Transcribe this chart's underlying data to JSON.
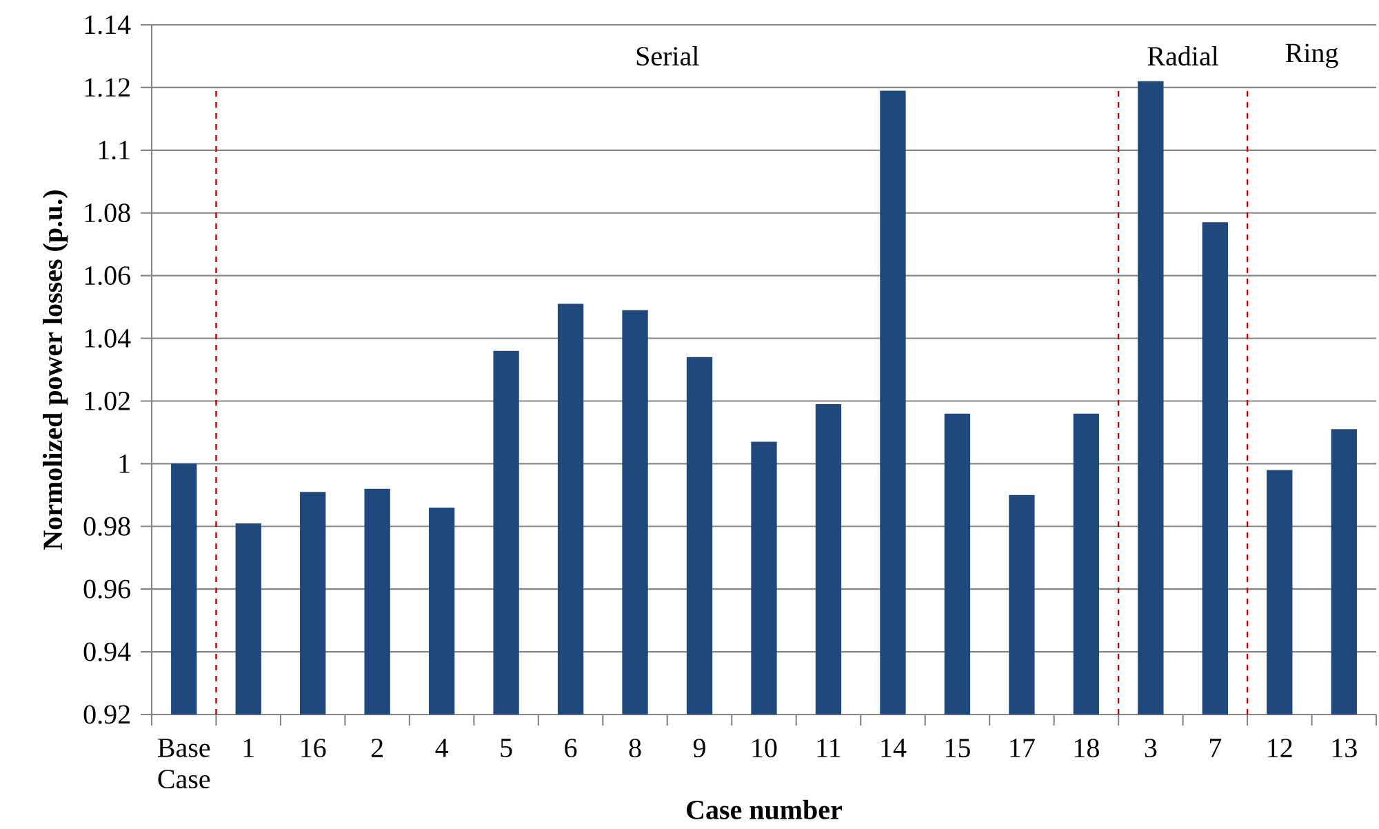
{
  "chart_data": {
    "type": "bar",
    "xlabel": "Case number",
    "ylabel": "Normolized power losses (p.u.)",
    "categories": [
      "Base Case",
      "1",
      "16",
      "2",
      "4",
      "5",
      "6",
      "8",
      "9",
      "10",
      "11",
      "14",
      "15",
      "17",
      "18",
      "3",
      "7",
      "12",
      "13"
    ],
    "values": [
      1.0,
      0.981,
      0.991,
      0.992,
      0.986,
      1.036,
      1.051,
      1.049,
      1.034,
      1.007,
      1.019,
      1.119,
      1.016,
      0.99,
      1.016,
      1.122,
      1.077,
      0.998,
      1.011
    ],
    "color": "#1f497d",
    "ylim": [
      0.92,
      1.14
    ],
    "yticks": [
      0.92,
      0.94,
      0.96,
      0.98,
      1,
      1.02,
      1.04,
      1.06,
      1.08,
      1.1,
      1.12,
      1.14
    ],
    "grid": "y",
    "annotations": [
      "Serial",
      "Radial",
      "Ring"
    ]
  }
}
